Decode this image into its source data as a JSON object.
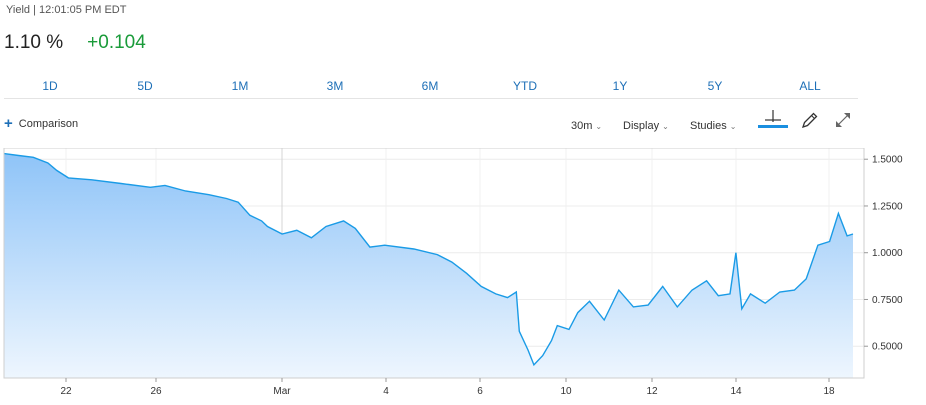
{
  "header": {
    "label": "Yield | 12:01:05 PM EDT",
    "price": "1.10 %",
    "change": "+0.104"
  },
  "ranges": [
    "1D",
    "5D",
    "1M",
    "3M",
    "6M",
    "YTD",
    "1Y",
    "5Y",
    "ALL"
  ],
  "toolbar": {
    "comparison": "Comparison",
    "interval": "30m",
    "display": "Display",
    "studies": "Studies",
    "icons": [
      "crosshair-icon",
      "pencil-icon",
      "expand-icon"
    ]
  },
  "colors": {
    "line": "#1a9be6",
    "accent": "#1d6fb7",
    "positive": "#1a9b3a",
    "fill_top": "#8fc4f8",
    "fill_bottom": "#eef6fe"
  },
  "chart_data": {
    "type": "area",
    "x_ticks": [
      "22",
      "26",
      "Mar",
      "4",
      "6",
      "10",
      "12",
      "14",
      "18"
    ],
    "y_ticks": [
      "1.5000",
      "1.2500",
      "1.0000",
      "0.7500",
      "0.5000"
    ],
    "ylim": [
      0.33,
      1.56
    ],
    "grid": true,
    "series": [
      {
        "points": [
          [
            0.0,
            1.53
          ],
          [
            0.5,
            1.52
          ],
          [
            1.0,
            1.51
          ],
          [
            1.5,
            1.48
          ],
          [
            1.8,
            1.44
          ],
          [
            2.2,
            1.4
          ],
          [
            3.0,
            1.39
          ],
          [
            4.0,
            1.37
          ],
          [
            5.0,
            1.35
          ],
          [
            5.5,
            1.36
          ],
          [
            6.2,
            1.33
          ],
          [
            7.0,
            1.31
          ],
          [
            7.6,
            1.29
          ],
          [
            8.0,
            1.27
          ],
          [
            8.4,
            1.2
          ],
          [
            8.8,
            1.17
          ],
          [
            9.0,
            1.14
          ],
          [
            9.5,
            1.1
          ],
          [
            10.0,
            1.12
          ],
          [
            10.5,
            1.08
          ],
          [
            11.0,
            1.14
          ],
          [
            11.6,
            1.17
          ],
          [
            12.0,
            1.13
          ],
          [
            12.5,
            1.03
          ],
          [
            13.0,
            1.04
          ],
          [
            14.0,
            1.02
          ],
          [
            14.8,
            0.99
          ],
          [
            15.3,
            0.95
          ],
          [
            15.8,
            0.89
          ],
          [
            16.3,
            0.82
          ],
          [
            16.8,
            0.78
          ],
          [
            17.2,
            0.76
          ],
          [
            17.5,
            0.79
          ],
          [
            17.6,
            0.58
          ],
          [
            17.9,
            0.48
          ],
          [
            18.1,
            0.4
          ],
          [
            18.4,
            0.45
          ],
          [
            18.7,
            0.53
          ],
          [
            18.9,
            0.61
          ],
          [
            19.3,
            0.59
          ],
          [
            19.6,
            0.68
          ],
          [
            20.0,
            0.74
          ],
          [
            20.5,
            0.64
          ],
          [
            21.0,
            0.8
          ],
          [
            21.5,
            0.71
          ],
          [
            22.0,
            0.72
          ],
          [
            22.5,
            0.82
          ],
          [
            23.0,
            0.71
          ],
          [
            23.5,
            0.8
          ],
          [
            24.0,
            0.85
          ],
          [
            24.4,
            0.77
          ],
          [
            24.8,
            0.78
          ],
          [
            25.0,
            1.0
          ],
          [
            25.2,
            0.7
          ],
          [
            25.5,
            0.78
          ],
          [
            26.0,
            0.73
          ],
          [
            26.5,
            0.79
          ],
          [
            27.0,
            0.8
          ],
          [
            27.4,
            0.86
          ],
          [
            27.8,
            1.04
          ],
          [
            28.2,
            1.06
          ],
          [
            28.5,
            1.21
          ],
          [
            28.8,
            1.09
          ],
          [
            29.0,
            1.1
          ]
        ]
      }
    ]
  }
}
